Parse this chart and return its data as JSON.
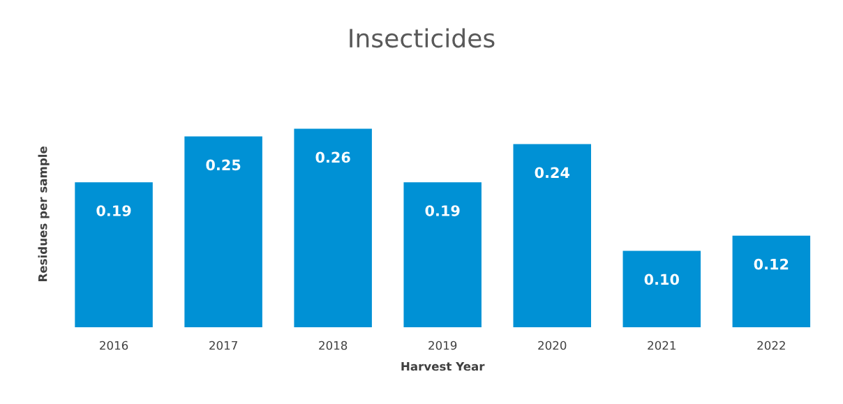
{
  "chart_data": {
    "type": "bar",
    "title": "Insecticides",
    "xlabel": "Harvest Year",
    "ylabel": "Residues per sample",
    "categories": [
      "2016",
      "2017",
      "2018",
      "2019",
      "2020",
      "2021",
      "2022"
    ],
    "values": [
      0.19,
      0.25,
      0.26,
      0.19,
      0.24,
      0.1,
      0.12
    ],
    "value_labels": [
      "0.19",
      "0.25",
      "0.26",
      "0.19",
      "0.24",
      "0.10",
      "0.12"
    ],
    "color": "#0091d5",
    "grid": false,
    "legend": false,
    "tick_labels": "x"
  }
}
